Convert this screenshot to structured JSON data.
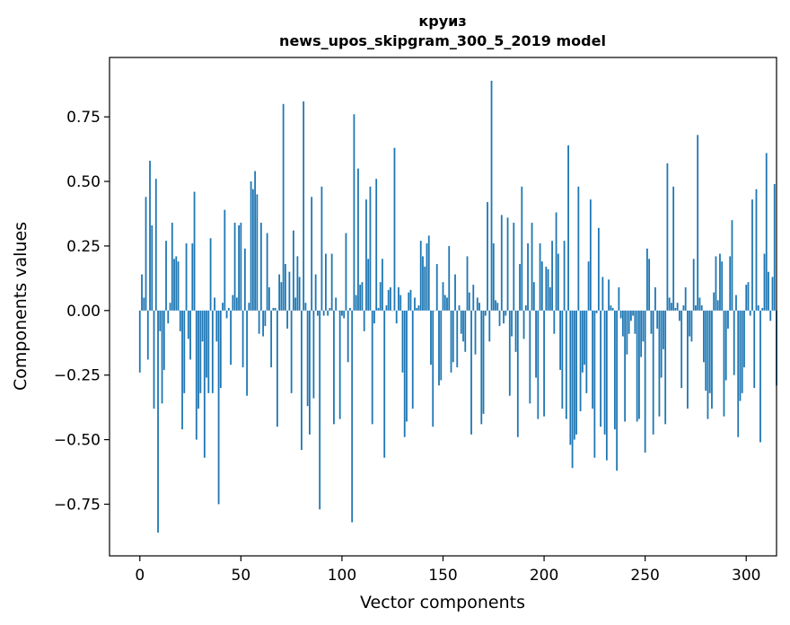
{
  "chart_data": {
    "type": "bar",
    "title": "круиз",
    "subtitle": "news_upos_skipgram_300_5_2019 model",
    "xlabel": "Vector components",
    "ylabel": "Components values",
    "xlim": [
      -15,
      315
    ],
    "ylim": [
      -0.95,
      0.98
    ],
    "xticks": [
      0,
      50,
      100,
      150,
      200,
      250,
      300
    ],
    "yticks": [
      -0.75,
      -0.5,
      -0.25,
      0.0,
      0.25,
      0.5,
      0.75
    ],
    "ytick_labels": [
      "−0.75",
      "−0.50",
      "−0.25",
      "0.00",
      "0.25",
      "0.50",
      "0.75"
    ],
    "bar_color": "#1f77b4",
    "values": [
      -0.24,
      0.14,
      0.05,
      0.44,
      -0.19,
      0.58,
      0.33,
      -0.38,
      0.51,
      -0.86,
      -0.08,
      -0.36,
      -0.23,
      0.27,
      -0.05,
      0.03,
      0.34,
      0.2,
      0.21,
      0.19,
      -0.08,
      -0.46,
      -0.32,
      0.26,
      -0.11,
      -0.19,
      0.26,
      0.46,
      -0.5,
      -0.38,
      -0.32,
      -0.12,
      -0.57,
      -0.26,
      -0.32,
      0.28,
      -0.32,
      0.05,
      -0.12,
      -0.75,
      -0.3,
      0.03,
      0.39,
      -0.03,
      0.01,
      -0.21,
      0.06,
      0.34,
      0.05,
      0.33,
      0.34,
      -0.22,
      0.24,
      -0.33,
      0.03,
      0.5,
      0.47,
      0.54,
      0.45,
      -0.09,
      0.34,
      -0.1,
      -0.06,
      0.3,
      0.09,
      -0.22,
      0.01,
      0.01,
      -0.45,
      0.14,
      0.11,
      0.8,
      0.18,
      -0.07,
      0.15,
      -0.32,
      0.31,
      0.05,
      0.21,
      0.13,
      -0.54,
      0.81,
      0.03,
      -0.37,
      -0.48,
      0.44,
      -0.34,
      0.14,
      -0.02,
      -0.77,
      0.48,
      -0.02,
      0.22,
      -0.02,
      0.01,
      0.22,
      -0.44,
      0.05,
      0.0,
      -0.42,
      -0.02,
      -0.03,
      0.3,
      -0.2,
      0.01,
      -0.82,
      0.76,
      0.06,
      0.55,
      0.1,
      0.11,
      -0.08,
      0.43,
      0.2,
      0.48,
      -0.44,
      -0.05,
      0.51,
      0.01,
      0.11,
      0.2,
      -0.57,
      0.02,
      0.08,
      0.09,
      0.0,
      0.63,
      -0.05,
      0.09,
      0.06,
      -0.24,
      -0.49,
      -0.43,
      0.07,
      0.08,
      -0.38,
      0.05,
      0.01,
      0.02,
      0.27,
      0.21,
      0.17,
      0.26,
      0.29,
      -0.21,
      -0.45,
      0.0,
      0.18,
      -0.29,
      -0.27,
      0.11,
      0.06,
      0.05,
      0.25,
      -0.24,
      -0.2,
      0.14,
      -0.22,
      0.02,
      -0.09,
      -0.12,
      -0.16,
      0.21,
      0.07,
      -0.48,
      0.1,
      -0.17,
      0.05,
      0.03,
      -0.44,
      -0.4,
      -0.02,
      0.42,
      -0.12,
      0.89,
      0.26,
      0.04,
      0.03,
      -0.06,
      0.37,
      -0.05,
      -0.02,
      0.36,
      -0.33,
      -0.1,
      0.34,
      -0.16,
      -0.49,
      0.18,
      0.48,
      -0.11,
      0.02,
      0.26,
      -0.36,
      0.34,
      0.11,
      -0.26,
      -0.42,
      0.26,
      0.19,
      -0.41,
      0.17,
      0.16,
      0.09,
      0.27,
      -0.09,
      0.38,
      0.22,
      -0.23,
      -0.38,
      0.27,
      -0.42,
      0.64,
      -0.52,
      -0.61,
      -0.5,
      -0.48,
      0.48,
      -0.39,
      -0.24,
      -0.21,
      -0.32,
      0.19,
      0.43,
      -0.38,
      -0.57,
      -0.01,
      0.32,
      -0.45,
      0.13,
      -0.48,
      -0.58,
      0.12,
      0.02,
      0.01,
      -0.46,
      -0.62,
      0.09,
      -0.03,
      -0.1,
      -0.43,
      -0.17,
      -0.09,
      -0.04,
      -0.02,
      -0.09,
      -0.43,
      -0.42,
      -0.18,
      -0.12,
      -0.55,
      0.24,
      0.2,
      -0.09,
      -0.48,
      0.09,
      -0.07,
      -0.41,
      -0.26,
      -0.15,
      -0.44,
      0.57,
      0.05,
      0.03,
      0.48,
      0.01,
      0.03,
      -0.04,
      -0.3,
      0.02,
      0.09,
      -0.38,
      -0.1,
      -0.12,
      0.2,
      0.02,
      0.68,
      0.05,
      0.02,
      -0.2,
      -0.31,
      -0.42,
      -0.32,
      -0.38,
      0.07,
      0.21,
      0.04,
      0.22,
      0.19,
      -0.41,
      -0.27,
      -0.07,
      0.21,
      0.35,
      -0.25,
      0.06,
      -0.49,
      -0.35,
      -0.32,
      -0.22,
      0.1,
      0.11,
      -0.02,
      0.43,
      -0.3,
      0.47,
      0.02,
      -0.51,
      0.01,
      0.22,
      0.61,
      0.15,
      -0.04,
      0.13,
      0.49,
      -0.29
    ]
  }
}
